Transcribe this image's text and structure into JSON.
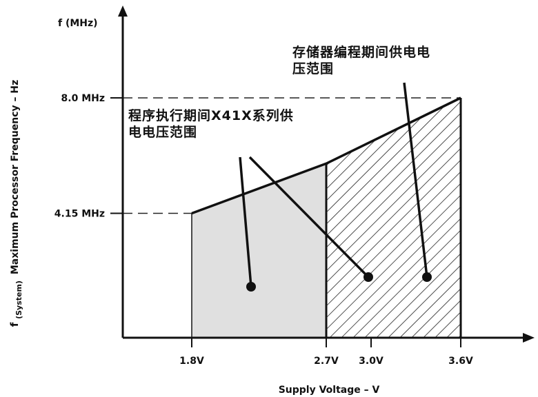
{
  "chart_data": {
    "type": "area",
    "title": "",
    "xlabel": "Supply Voltage – V",
    "ylabel_main": "Maximum Processor Frequency – Hz",
    "ylabel_prefix": "f",
    "ylabel_subscript": "(System)",
    "y_axis_unit_label": "f (MHz)",
    "x_ticks": [
      {
        "value": 1.8,
        "label": "1.8V"
      },
      {
        "value": 2.7,
        "label": "2.7V"
      },
      {
        "value": 3.0,
        "label": "3.0V"
      },
      {
        "value": 3.6,
        "label": "3.6V"
      }
    ],
    "y_ticks": [
      {
        "value": 4.15,
        "label": "4.15 MHz"
      },
      {
        "value": 8.0,
        "label": "8.0 MHz"
      }
    ],
    "xlim": [
      1.2,
      3.9
    ],
    "ylim": [
      0,
      10
    ],
    "series": [
      {
        "points": [
          [
            1.8,
            4.15
          ],
          [
            2.7,
            5.81
          ],
          [
            3.6,
            8.0
          ]
        ]
      }
    ],
    "regions": [
      {
        "x_range": [
          1.8,
          2.7
        ],
        "fill": "#e0e0e0",
        "pattern": "solid"
      },
      {
        "x_range": [
          2.7,
          3.6
        ],
        "fill": "#ffffff",
        "pattern": "diagonal-hatch"
      }
    ],
    "annotations": [
      {
        "lines": [
          "程序执行期间X41X系列供",
          "电电压范围"
        ]
      },
      {
        "lines": [
          "存储器编程期间供电电",
          "压范围"
        ]
      }
    ]
  }
}
